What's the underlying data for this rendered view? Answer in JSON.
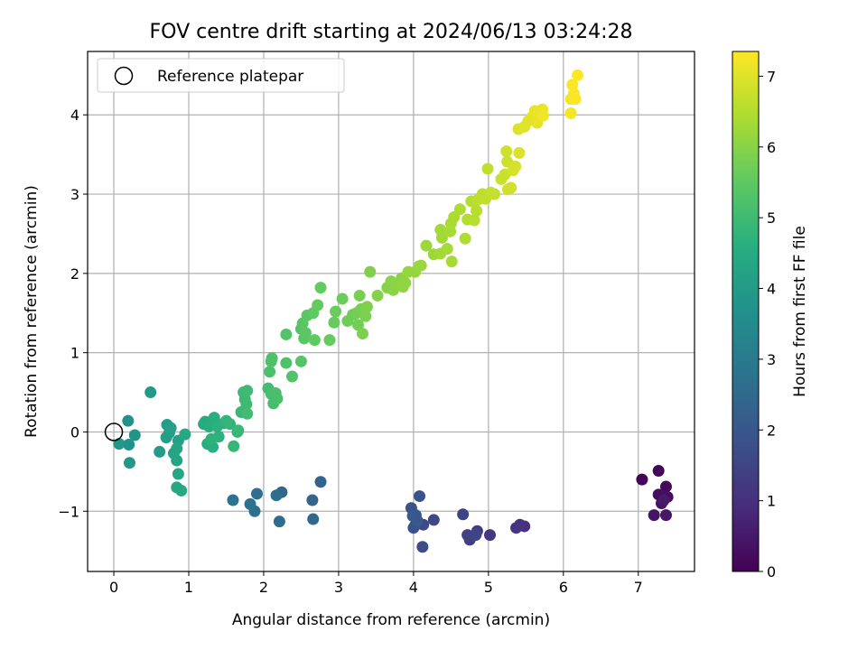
{
  "chart_data": {
    "type": "scatter",
    "title": "FOV centre drift starting at 2024/06/13 03:24:28",
    "xlabel": "Angular distance from reference (arcmin)",
    "ylabel": "Rotation from reference (arcmin)",
    "xlim": [
      -0.35,
      7.75
    ],
    "ylim": [
      -1.76,
      4.8
    ],
    "x_ticks": [
      0,
      1,
      2,
      3,
      4,
      5,
      6,
      7
    ],
    "y_ticks": [
      -1,
      0,
      1,
      2,
      3,
      4
    ],
    "x_tick_labels": [
      "0",
      "1",
      "2",
      "3",
      "4",
      "5",
      "6",
      "7"
    ],
    "y_tick_labels": [
      "−1",
      "0",
      "1",
      "2",
      "3",
      "4"
    ],
    "grid": true,
    "legend_position": "top-left",
    "legend_label": "Reference platepar",
    "reference_point": {
      "x": 0,
      "y": 0
    },
    "colorbar": {
      "label": "Hours from first FF file",
      "min": 0,
      "max": 7.35,
      "ticks": [
        0,
        1,
        2,
        3,
        4,
        5,
        6,
        7
      ],
      "tick_labels": [
        "0",
        "1",
        "2",
        "3",
        "4",
        "5",
        "6",
        "7"
      ],
      "colormap": "viridis"
    },
    "points": [
      [
        7.05,
        -0.6,
        0.05
      ],
      [
        7.27,
        -0.49,
        0.1
      ],
      [
        7.37,
        -0.69,
        0.15
      ],
      [
        7.3,
        -0.8,
        0.2
      ],
      [
        7.39,
        -0.82,
        0.25
      ],
      [
        7.27,
        -0.79,
        0.3
      ],
      [
        7.31,
        -0.9,
        0.35
      ],
      [
        7.21,
        -1.05,
        0.4
      ],
      [
        7.37,
        -1.05,
        0.45
      ],
      [
        7.34,
        -0.86,
        0.5
      ],
      [
        5.48,
        -1.19,
        1.0
      ],
      [
        5.42,
        -1.17,
        1.05
      ],
      [
        5.37,
        -1.21,
        1.1
      ],
      [
        5.02,
        -1.3,
        1.2
      ],
      [
        4.85,
        -1.25,
        1.3
      ],
      [
        4.75,
        -1.36,
        1.35
      ],
      [
        4.72,
        -1.3,
        1.4
      ],
      [
        4.66,
        -1.04,
        1.45
      ],
      [
        4.83,
        -1.3,
        1.5
      ],
      [
        4.27,
        -1.11,
        1.6
      ],
      [
        4.13,
        -1.17,
        1.65
      ],
      [
        4.12,
        -1.45,
        1.7
      ],
      [
        4.02,
        -1.18,
        1.75
      ],
      [
        4.0,
        -1.21,
        1.8
      ],
      [
        3.97,
        -0.96,
        1.85
      ],
      [
        4.08,
        -0.81,
        1.9
      ],
      [
        4.03,
        -1.05,
        1.95
      ],
      [
        4.05,
        -1.12,
        2.0
      ],
      [
        3.99,
        -1.06,
        2.05
      ],
      [
        2.76,
        -0.63,
        2.35
      ],
      [
        2.65,
        -0.86,
        2.4
      ],
      [
        2.66,
        -1.1,
        2.45
      ],
      [
        2.24,
        -0.76,
        2.5
      ],
      [
        2.21,
        -1.13,
        2.55
      ],
      [
        2.17,
        -0.8,
        2.6
      ],
      [
        1.91,
        -0.78,
        2.65
      ],
      [
        1.88,
        -1.0,
        2.7
      ],
      [
        1.82,
        -0.91,
        2.75
      ],
      [
        1.59,
        -0.86,
        2.8
      ],
      [
        0.19,
        0.14,
        3.7
      ],
      [
        0.2,
        -0.16,
        3.75
      ],
      [
        0.28,
        -0.04,
        3.8
      ],
      [
        0.07,
        -0.15,
        3.85
      ],
      [
        0.21,
        -0.39,
        3.9
      ],
      [
        0.49,
        0.5,
        3.95
      ],
      [
        0.61,
        -0.25,
        4.0
      ],
      [
        0.71,
        0.09,
        4.05
      ],
      [
        0.7,
        -0.07,
        4.1
      ],
      [
        0.74,
        -0.01,
        4.1
      ],
      [
        0.76,
        0.05,
        4.15
      ],
      [
        0.86,
        -0.11,
        4.2
      ],
      [
        0.8,
        -0.27,
        4.25
      ],
      [
        0.84,
        -0.21,
        4.3
      ],
      [
        0.84,
        -0.36,
        4.3
      ],
      [
        0.86,
        -0.53,
        4.35
      ],
      [
        0.84,
        -0.7,
        4.35
      ],
      [
        0.9,
        -0.74,
        4.4
      ],
      [
        0.95,
        -0.03,
        4.4
      ],
      [
        1.2,
        0.1,
        4.45
      ],
      [
        1.22,
        0.13,
        4.5
      ],
      [
        1.25,
        -0.15,
        4.55
      ],
      [
        1.27,
        0.07,
        4.55
      ],
      [
        1.32,
        -0.19,
        4.6
      ],
      [
        1.34,
        0.18,
        4.6
      ],
      [
        1.38,
        0.07,
        4.65
      ],
      [
        1.4,
        -0.06,
        4.65
      ],
      [
        1.3,
        -0.09,
        4.7
      ],
      [
        1.47,
        0.11,
        4.7
      ],
      [
        1.5,
        0.14,
        4.75
      ],
      [
        1.55,
        0.1,
        4.8
      ],
      [
        1.6,
        -0.18,
        4.85
      ],
      [
        1.65,
        0.0,
        4.85
      ],
      [
        1.66,
        0.02,
        4.9
      ],
      [
        1.7,
        0.25,
        4.9
      ],
      [
        1.73,
        0.5,
        4.95
      ],
      [
        1.75,
        0.41,
        4.95
      ],
      [
        1.77,
        0.35,
        5.0
      ],
      [
        1.78,
        0.52,
        5.0
      ],
      [
        1.78,
        0.23,
        5.05
      ],
      [
        2.06,
        0.55,
        5.05
      ],
      [
        2.1,
        0.48,
        5.1
      ],
      [
        2.13,
        0.36,
        5.1
      ],
      [
        2.16,
        0.49,
        5.15
      ],
      [
        2.18,
        0.42,
        5.15
      ],
      [
        2.08,
        0.76,
        5.2
      ],
      [
        2.1,
        0.89,
        5.2
      ],
      [
        2.11,
        0.93,
        5.25
      ],
      [
        2.3,
        0.87,
        5.25
      ],
      [
        2.38,
        0.7,
        5.3
      ],
      [
        2.3,
        1.23,
        5.3
      ],
      [
        2.5,
        0.89,
        5.35
      ],
      [
        2.5,
        1.3,
        5.35
      ],
      [
        2.52,
        1.37,
        5.4
      ],
      [
        2.54,
        1.18,
        5.4
      ],
      [
        2.56,
        1.25,
        5.45
      ],
      [
        2.58,
        1.47,
        5.45
      ],
      [
        2.66,
        1.5,
        5.5
      ],
      [
        2.68,
        1.16,
        5.5
      ],
      [
        2.72,
        1.6,
        5.55
      ],
      [
        2.76,
        1.82,
        5.55
      ],
      [
        2.88,
        1.16,
        5.6
      ],
      [
        2.94,
        1.38,
        5.6
      ],
      [
        2.96,
        1.52,
        5.65
      ],
      [
        3.05,
        1.68,
        5.65
      ],
      [
        3.12,
        1.4,
        5.7
      ],
      [
        3.19,
        1.48,
        5.7
      ],
      [
        3.24,
        1.5,
        5.75
      ],
      [
        3.26,
        1.35,
        5.75
      ],
      [
        3.28,
        1.72,
        5.8
      ],
      [
        3.3,
        1.55,
        5.8
      ],
      [
        3.32,
        1.24,
        5.85
      ],
      [
        3.36,
        1.46,
        5.85
      ],
      [
        3.38,
        1.58,
        5.9
      ],
      [
        3.42,
        2.02,
        5.9
      ],
      [
        3.52,
        1.72,
        5.95
      ],
      [
        3.65,
        1.82,
        5.95
      ],
      [
        3.7,
        1.9,
        6.0
      ],
      [
        3.73,
        1.79,
        6.0
      ],
      [
        3.8,
        1.85,
        6.05
      ],
      [
        3.84,
        1.94,
        6.05
      ],
      [
        3.86,
        1.83,
        6.1
      ],
      [
        3.89,
        1.88,
        6.1
      ],
      [
        3.93,
        2.02,
        6.15
      ],
      [
        4.02,
        2.02,
        6.15
      ],
      [
        4.07,
        2.09,
        6.2
      ],
      [
        4.1,
        2.1,
        6.2
      ],
      [
        4.17,
        2.35,
        6.25
      ],
      [
        4.27,
        2.24,
        6.25
      ],
      [
        4.36,
        2.25,
        6.3
      ],
      [
        4.38,
        2.45,
        6.3
      ],
      [
        4.36,
        2.55,
        6.3
      ],
      [
        4.45,
        2.31,
        6.35
      ],
      [
        4.51,
        2.15,
        6.35
      ],
      [
        4.49,
        2.53,
        6.35
      ],
      [
        4.5,
        2.63,
        6.4
      ],
      [
        4.54,
        2.71,
        6.4
      ],
      [
        4.62,
        2.81,
        6.45
      ],
      [
        4.69,
        2.44,
        6.45
      ],
      [
        4.72,
        2.68,
        6.5
      ],
      [
        4.77,
        2.91,
        6.5
      ],
      [
        4.81,
        2.67,
        6.55
      ],
      [
        4.84,
        2.79,
        6.55
      ],
      [
        4.86,
        2.93,
        6.6
      ],
      [
        4.92,
        3.0,
        6.6
      ],
      [
        4.96,
        2.94,
        6.65
      ],
      [
        4.99,
        3.32,
        6.65
      ],
      [
        5.03,
        3.02,
        6.7
      ],
      [
        5.08,
        3.0,
        6.7
      ],
      [
        5.17,
        3.19,
        6.75
      ],
      [
        5.22,
        3.25,
        6.75
      ],
      [
        5.24,
        3.54,
        6.8
      ],
      [
        5.25,
        3.41,
        6.8
      ],
      [
        5.26,
        3.06,
        6.85
      ],
      [
        5.3,
        3.08,
        6.85
      ],
      [
        5.33,
        3.3,
        6.9
      ],
      [
        5.36,
        3.35,
        6.9
      ],
      [
        5.41,
        3.52,
        6.95
      ],
      [
        5.4,
        3.82,
        6.95
      ],
      [
        5.48,
        3.85,
        7.0
      ],
      [
        5.53,
        3.92,
        7.0
      ],
      [
        5.55,
        3.94,
        7.05
      ],
      [
        5.58,
        3.97,
        7.05
      ],
      [
        5.62,
        4.05,
        7.1
      ],
      [
        5.65,
        3.9,
        7.1
      ],
      [
        5.68,
        4.03,
        7.15
      ],
      [
        5.72,
        4.07,
        7.15
      ],
      [
        5.73,
        3.99,
        7.2
      ],
      [
        6.1,
        4.02,
        7.25
      ],
      [
        6.1,
        4.2,
        7.25
      ],
      [
        6.14,
        4.27,
        7.3
      ],
      [
        6.12,
        4.38,
        7.3
      ],
      [
        6.16,
        4.2,
        7.3
      ],
      [
        6.19,
        4.5,
        7.35
      ]
    ]
  }
}
